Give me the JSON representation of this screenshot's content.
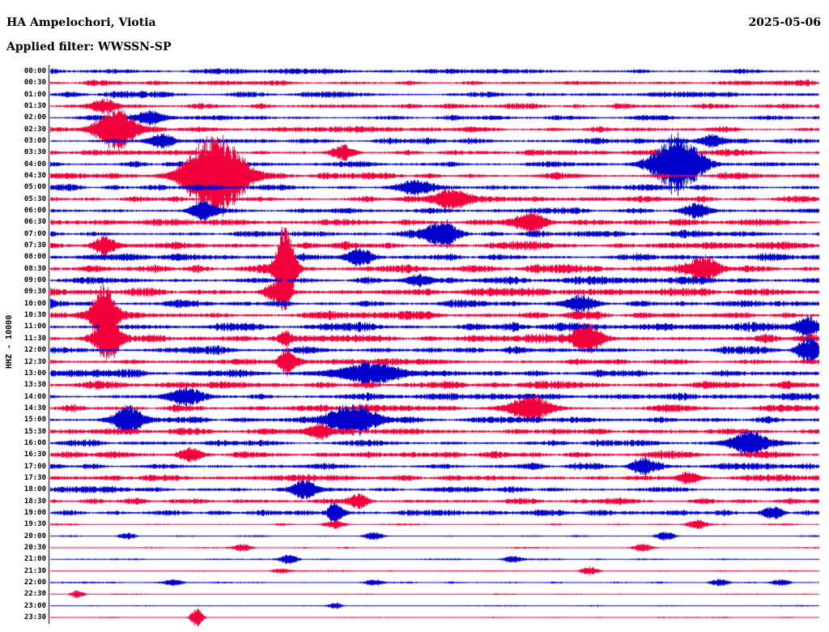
{
  "header": {
    "station": "HA Ampelochori, Viotia",
    "date": "2025-05-06",
    "filter_label": "Applied filter: WWSSN-SP"
  },
  "chart_data": {
    "type": "line",
    "title": "HA Ampelochori, Viotia",
    "subtitle": "Applied filter: WWSSN-SP",
    "date": "2025-05-06",
    "ylabel": "HHZ - 10000",
    "row_minutes": 30,
    "background": "#ffffff",
    "axis_color": "#000000",
    "colors": {
      "red": "#f2003c",
      "blue": "#0000cd"
    },
    "rows": [
      {
        "label": "00:00",
        "color": "blue",
        "noise": 2.6
      },
      {
        "label": "00:30",
        "color": "red",
        "noise": 2.8
      },
      {
        "label": "01:00",
        "color": "blue",
        "noise": 3.0
      },
      {
        "label": "01:30",
        "color": "red",
        "noise": 3.0
      },
      {
        "label": "02:00",
        "color": "blue",
        "noise": 2.8
      },
      {
        "label": "02:30",
        "color": "red",
        "noise": 3.0
      },
      {
        "label": "03:00",
        "color": "blue",
        "noise": 3.0
      },
      {
        "label": "03:30",
        "color": "red",
        "noise": 3.2
      },
      {
        "label": "04:00",
        "color": "blue",
        "noise": 3.2
      },
      {
        "label": "04:30",
        "color": "red",
        "noise": 3.4
      },
      {
        "label": "05:00",
        "color": "blue",
        "noise": 3.2
      },
      {
        "label": "05:30",
        "color": "red",
        "noise": 3.2
      },
      {
        "label": "06:00",
        "color": "blue",
        "noise": 3.4
      },
      {
        "label": "06:30",
        "color": "red",
        "noise": 3.6
      },
      {
        "label": "07:00",
        "color": "blue",
        "noise": 3.6
      },
      {
        "label": "07:30",
        "color": "red",
        "noise": 3.8
      },
      {
        "label": "08:00",
        "color": "blue",
        "noise": 4.0
      },
      {
        "label": "08:30",
        "color": "red",
        "noise": 4.0
      },
      {
        "label": "09:00",
        "color": "blue",
        "noise": 4.0
      },
      {
        "label": "09:30",
        "color": "red",
        "noise": 4.0
      },
      {
        "label": "10:00",
        "color": "blue",
        "noise": 4.2
      },
      {
        "label": "10:30",
        "color": "red",
        "noise": 4.2
      },
      {
        "label": "11:00",
        "color": "blue",
        "noise": 4.2
      },
      {
        "label": "11:30",
        "color": "red",
        "noise": 4.2
      },
      {
        "label": "12:00",
        "color": "blue",
        "noise": 4.2
      },
      {
        "label": "12:30",
        "color": "red",
        "noise": 4.0
      },
      {
        "label": "13:00",
        "color": "blue",
        "noise": 4.0
      },
      {
        "label": "13:30",
        "color": "red",
        "noise": 4.0
      },
      {
        "label": "14:00",
        "color": "blue",
        "noise": 3.8
      },
      {
        "label": "14:30",
        "color": "red",
        "noise": 3.8
      },
      {
        "label": "15:00",
        "color": "blue",
        "noise": 3.8
      },
      {
        "label": "15:30",
        "color": "red",
        "noise": 3.8
      },
      {
        "label": "16:00",
        "color": "blue",
        "noise": 3.6
      },
      {
        "label": "16:30",
        "color": "red",
        "noise": 3.6
      },
      {
        "label": "17:00",
        "color": "blue",
        "noise": 3.4
      },
      {
        "label": "17:30",
        "color": "red",
        "noise": 3.4
      },
      {
        "label": "18:00",
        "color": "blue",
        "noise": 3.2
      },
      {
        "label": "18:30",
        "color": "red",
        "noise": 3.2
      },
      {
        "label": "19:00",
        "color": "blue",
        "noise": 3.0
      },
      {
        "label": "19:30",
        "color": "red",
        "noise": 1.2
      },
      {
        "label": "20:00",
        "color": "blue",
        "noise": 0.9
      },
      {
        "label": "20:30",
        "color": "red",
        "noise": 0.8
      },
      {
        "label": "21:00",
        "color": "blue",
        "noise": 0.9
      },
      {
        "label": "21:30",
        "color": "red",
        "noise": 0.8
      },
      {
        "label": "22:00",
        "color": "blue",
        "noise": 0.9
      },
      {
        "label": "22:30",
        "color": "red",
        "noise": 0.7
      },
      {
        "label": "23:00",
        "color": "blue",
        "noise": 0.7
      },
      {
        "label": "23:30",
        "color": "red",
        "noise": 0.7
      }
    ],
    "events": [
      [
        3,
        0.07,
        9,
        12
      ],
      [
        4,
        0.13,
        7,
        12
      ],
      [
        5,
        0.085,
        28,
        18
      ],
      [
        6,
        0.145,
        9,
        12
      ],
      [
        6,
        0.86,
        8,
        12
      ],
      [
        7,
        0.38,
        10,
        10
      ],
      [
        8,
        0.815,
        40,
        20
      ],
      [
        9,
        0.215,
        52,
        26
      ],
      [
        10,
        0.47,
        9,
        15
      ],
      [
        11,
        0.52,
        11,
        15
      ],
      [
        12,
        0.2,
        10,
        12
      ],
      [
        12,
        0.84,
        9,
        12
      ],
      [
        13,
        0.625,
        13,
        14
      ],
      [
        14,
        0.51,
        16,
        14
      ],
      [
        15,
        0.07,
        11,
        10
      ],
      [
        16,
        0.4,
        10,
        10
      ],
      [
        17,
        0.305,
        55,
        8
      ],
      [
        17,
        0.85,
        17,
        14
      ],
      [
        18,
        0.48,
        8,
        12
      ],
      [
        19,
        0.29,
        10,
        10
      ],
      [
        19,
        0.305,
        14,
        5
      ],
      [
        20,
        0.69,
        10,
        14
      ],
      [
        21,
        0.07,
        38,
        10
      ],
      [
        22,
        0.985,
        14,
        10
      ],
      [
        23,
        0.075,
        26,
        10
      ],
      [
        23,
        0.305,
        10,
        5
      ],
      [
        23,
        0.7,
        18,
        12
      ],
      [
        24,
        0.985,
        16,
        10
      ],
      [
        25,
        0.31,
        9,
        10
      ],
      [
        25,
        0.305,
        10,
        5
      ],
      [
        26,
        0.41,
        11,
        30
      ],
      [
        28,
        0.18,
        10,
        14
      ],
      [
        29,
        0.625,
        15,
        18
      ],
      [
        30,
        0.1,
        17,
        12
      ],
      [
        30,
        0.39,
        20,
        22
      ],
      [
        31,
        0.35,
        10,
        10
      ],
      [
        32,
        0.91,
        13,
        18
      ],
      [
        33,
        0.18,
        8,
        10
      ],
      [
        34,
        0.77,
        10,
        10
      ],
      [
        35,
        0.83,
        8,
        10
      ],
      [
        36,
        0.33,
        11,
        10
      ],
      [
        37,
        0.4,
        9,
        8
      ],
      [
        38,
        0.37,
        14,
        6
      ],
      [
        38,
        0.94,
        8,
        8
      ],
      [
        39,
        0.37,
        5,
        8
      ],
      [
        39,
        0.84,
        6,
        8
      ],
      [
        40,
        0.1,
        4,
        8
      ],
      [
        40,
        0.42,
        5,
        8
      ],
      [
        40,
        0.8,
        5,
        8
      ],
      [
        41,
        0.25,
        4,
        8
      ],
      [
        41,
        0.77,
        5,
        8
      ],
      [
        42,
        0.31,
        6,
        8
      ],
      [
        42,
        0.6,
        4,
        8
      ],
      [
        43,
        0.3,
        3,
        8
      ],
      [
        43,
        0.7,
        5,
        8
      ],
      [
        44,
        0.16,
        4,
        8
      ],
      [
        44,
        0.42,
        4,
        8
      ],
      [
        44,
        0.87,
        5,
        8
      ],
      [
        44,
        0.95,
        4,
        8
      ],
      [
        45,
        0.035,
        5,
        6
      ],
      [
        46,
        0.37,
        4,
        6
      ],
      [
        47,
        0.19,
        12,
        5
      ]
    ]
  }
}
